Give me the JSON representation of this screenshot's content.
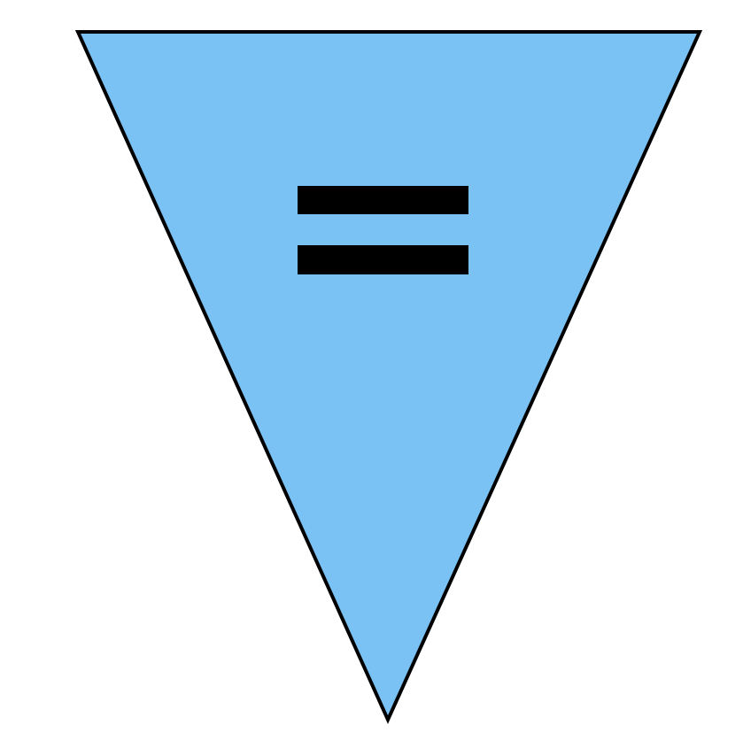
{
  "pennant": {
    "shape": "inverted-triangle",
    "fill_color": "#7ac1f4",
    "stroke_color": "#000000",
    "icon": "equals-sign-icon",
    "icon_color": "#000000"
  }
}
